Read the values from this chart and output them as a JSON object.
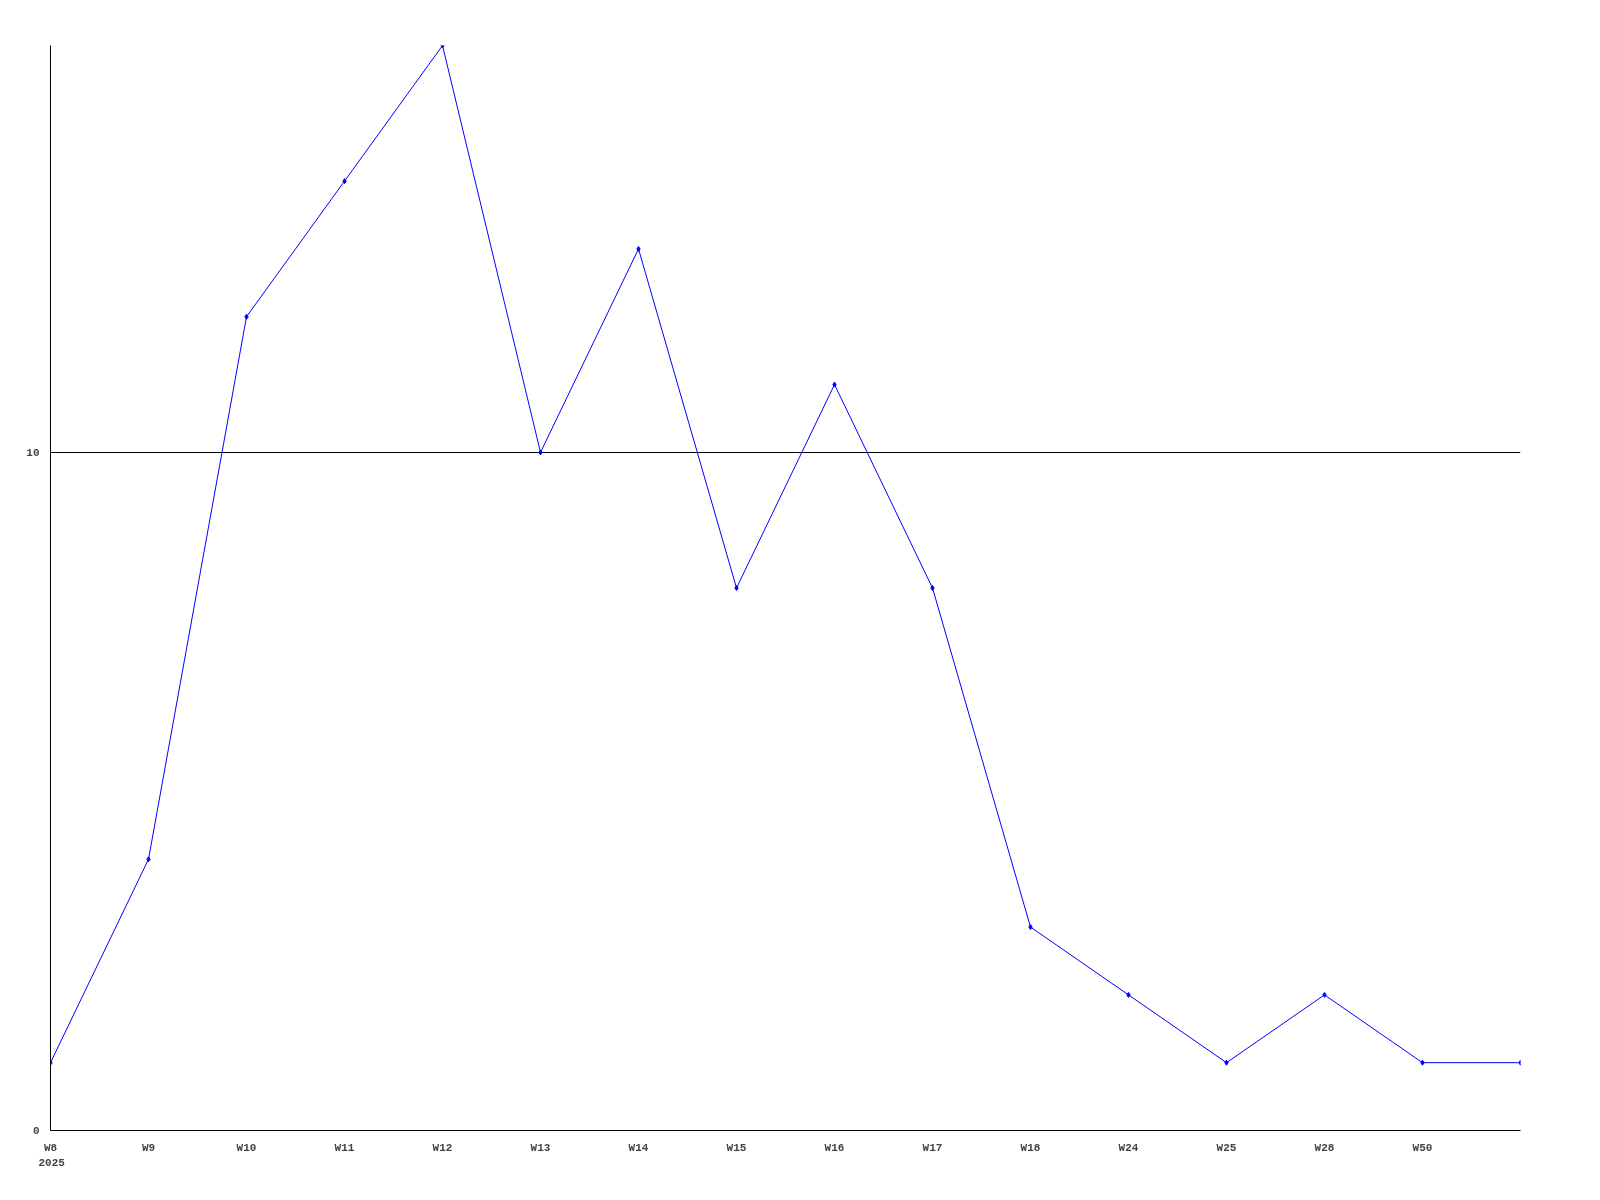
{
  "chart_data": {
    "type": "line",
    "categories": [
      "W8",
      "W9",
      "W10",
      "W11",
      "W12",
      "W13",
      "W14",
      "W15",
      "W16",
      "W17",
      "W18",
      "W24",
      "W25",
      "W28",
      "W50",
      null
    ],
    "series": [
      {
        "color": "#0000ff",
        "values": [
          1,
          4,
          12,
          14,
          16,
          10,
          13,
          8,
          11,
          8,
          3,
          2,
          1,
          2,
          1,
          1
        ]
      }
    ],
    "ylim": [
      0,
      16
    ],
    "yticks": [
      0,
      10
    ],
    "grid": "y",
    "marker": "diamond",
    "line_style": "solid",
    "annotations": [
      "2025"
    ]
  }
}
